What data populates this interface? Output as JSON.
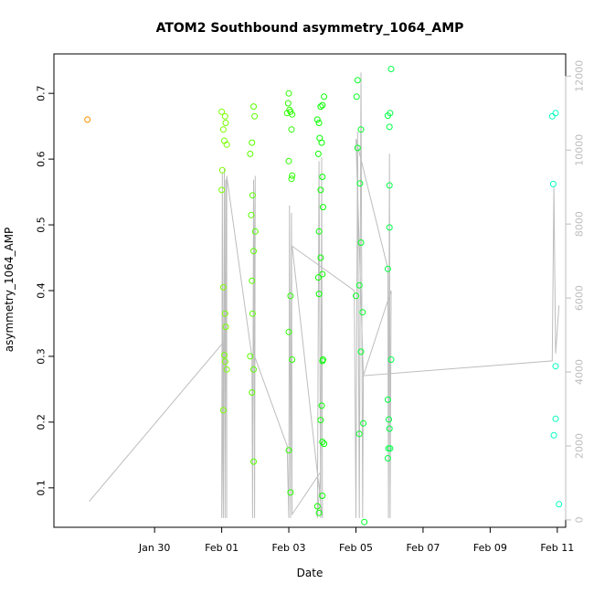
{
  "chart_data": {
    "type": "scatter",
    "title": "ATOM2 Southbound asymmetry_1064_AMP",
    "xlabel": "Date",
    "ylabel": "asymmetry_1064_AMP",
    "x_unit": "days since Jan 29 00:00",
    "x_range": [
      -2.0,
      13.25
    ],
    "ylim": [
      0.04,
      0.76
    ],
    "y_ticks": [
      0.1,
      0.2,
      0.3,
      0.4,
      0.5,
      0.6,
      0.7
    ],
    "y_tick_labels": [
      "0.1",
      "0.2",
      "0.3",
      "0.4",
      "0.5",
      "0.6",
      "0.7"
    ],
    "x_ticks": [
      1,
      3,
      5,
      7,
      9,
      11,
      13
    ],
    "x_tick_labels": [
      "Jan 30",
      "Feb 01",
      "Feb 03",
      "Feb 05",
      "Feb 07",
      "Feb 09",
      "Feb 11"
    ],
    "right_axis": {
      "ylim": [
        -200,
        12600
      ],
      "ticks": [
        0,
        2000,
        4000,
        6000,
        8000,
        10000,
        12000
      ],
      "tick_labels": [
        "0",
        "2000",
        "4000",
        "6000",
        "8000",
        "10000",
        "12000"
      ],
      "color": "#bdbdbd"
    },
    "grid": false,
    "points": [
      {
        "x": -1.0,
        "y": 0.66
      },
      {
        "x": 3.0,
        "y": 0.672
      },
      {
        "x": 3.05,
        "y": 0.645
      },
      {
        "x": 3.1,
        "y": 0.665
      },
      {
        "x": 3.12,
        "y": 0.655
      },
      {
        "x": 3.08,
        "y": 0.628
      },
      {
        "x": 3.15,
        "y": 0.622
      },
      {
        "x": 3.02,
        "y": 0.583
      },
      {
        "x": 3.0,
        "y": 0.553
      },
      {
        "x": 3.05,
        "y": 0.405
      },
      {
        "x": 3.1,
        "y": 0.365
      },
      {
        "x": 3.12,
        "y": 0.345
      },
      {
        "x": 3.08,
        "y": 0.302
      },
      {
        "x": 3.1,
        "y": 0.292
      },
      {
        "x": 3.15,
        "y": 0.28
      },
      {
        "x": 3.05,
        "y": 0.218
      },
      {
        "x": 3.85,
        "y": 0.608
      },
      {
        "x": 3.9,
        "y": 0.625
      },
      {
        "x": 3.95,
        "y": 0.68
      },
      {
        "x": 3.98,
        "y": 0.665
      },
      {
        "x": 3.92,
        "y": 0.545
      },
      {
        "x": 3.88,
        "y": 0.515
      },
      {
        "x": 4.0,
        "y": 0.49
      },
      {
        "x": 3.95,
        "y": 0.46
      },
      {
        "x": 3.9,
        "y": 0.415
      },
      {
        "x": 3.92,
        "y": 0.365
      },
      {
        "x": 3.85,
        "y": 0.3
      },
      {
        "x": 3.95,
        "y": 0.28
      },
      {
        "x": 3.9,
        "y": 0.245
      },
      {
        "x": 3.95,
        "y": 0.14
      },
      {
        "x": 5.0,
        "y": 0.7
      },
      {
        "x": 4.98,
        "y": 0.685
      },
      {
        "x": 5.02,
        "y": 0.675
      },
      {
        "x": 5.05,
        "y": 0.672
      },
      {
        "x": 5.1,
        "y": 0.668
      },
      {
        "x": 4.95,
        "y": 0.67
      },
      {
        "x": 5.08,
        "y": 0.645
      },
      {
        "x": 5.0,
        "y": 0.597
      },
      {
        "x": 5.1,
        "y": 0.575
      },
      {
        "x": 5.08,
        "y": 0.57
      },
      {
        "x": 5.05,
        "y": 0.392
      },
      {
        "x": 5.0,
        "y": 0.337
      },
      {
        "x": 5.1,
        "y": 0.295
      },
      {
        "x": 5.0,
        "y": 0.157
      },
      {
        "x": 5.05,
        "y": 0.093
      },
      {
        "x": 5.85,
        "y": 0.66
      },
      {
        "x": 5.9,
        "y": 0.655
      },
      {
        "x": 5.95,
        "y": 0.68
      },
      {
        "x": 6.0,
        "y": 0.682
      },
      {
        "x": 6.05,
        "y": 0.695
      },
      {
        "x": 5.92,
        "y": 0.632
      },
      {
        "x": 5.98,
        "y": 0.625
      },
      {
        "x": 5.88,
        "y": 0.608
      },
      {
        "x": 6.0,
        "y": 0.573
      },
      {
        "x": 5.95,
        "y": 0.553
      },
      {
        "x": 6.02,
        "y": 0.527
      },
      {
        "x": 5.9,
        "y": 0.49
      },
      {
        "x": 5.95,
        "y": 0.45
      },
      {
        "x": 6.0,
        "y": 0.425
      },
      {
        "x": 5.88,
        "y": 0.42
      },
      {
        "x": 5.9,
        "y": 0.395
      },
      {
        "x": 6.02,
        "y": 0.295
      },
      {
        "x": 6.0,
        "y": 0.293
      },
      {
        "x": 5.98,
        "y": 0.225
      },
      {
        "x": 5.95,
        "y": 0.203
      },
      {
        "x": 6.0,
        "y": 0.17
      },
      {
        "x": 6.05,
        "y": 0.167
      },
      {
        "x": 6.0,
        "y": 0.088
      },
      {
        "x": 5.85,
        "y": 0.072
      },
      {
        "x": 5.9,
        "y": 0.062
      },
      {
        "x": 7.05,
        "y": 0.72
      },
      {
        "x": 7.02,
        "y": 0.695
      },
      {
        "x": 7.15,
        "y": 0.645
      },
      {
        "x": 7.05,
        "y": 0.617
      },
      {
        "x": 7.12,
        "y": 0.563
      },
      {
        "x": 7.15,
        "y": 0.473
      },
      {
        "x": 7.1,
        "y": 0.408
      },
      {
        "x": 7.0,
        "y": 0.392
      },
      {
        "x": 7.2,
        "y": 0.367
      },
      {
        "x": 7.15,
        "y": 0.307
      },
      {
        "x": 7.22,
        "y": 0.198
      },
      {
        "x": 7.1,
        "y": 0.182
      },
      {
        "x": 7.25,
        "y": 0.048
      },
      {
        "x": 8.05,
        "y": 0.737
      },
      {
        "x": 8.02,
        "y": 0.67
      },
      {
        "x": 7.95,
        "y": 0.666
      },
      {
        "x": 8.0,
        "y": 0.649
      },
      {
        "x": 8.0,
        "y": 0.56
      },
      {
        "x": 8.0,
        "y": 0.496
      },
      {
        "x": 7.95,
        "y": 0.433
      },
      {
        "x": 8.05,
        "y": 0.295
      },
      {
        "x": 7.95,
        "y": 0.234
      },
      {
        "x": 7.98,
        "y": 0.204
      },
      {
        "x": 8.0,
        "y": 0.19
      },
      {
        "x": 7.97,
        "y": 0.16
      },
      {
        "x": 8.02,
        "y": 0.16
      },
      {
        "x": 7.95,
        "y": 0.145
      },
      {
        "x": 12.85,
        "y": 0.665
      },
      {
        "x": 12.95,
        "y": 0.67
      },
      {
        "x": 12.88,
        "y": 0.562
      },
      {
        "x": 12.95,
        "y": 0.285
      },
      {
        "x": 12.95,
        "y": 0.205
      },
      {
        "x": 12.9,
        "y": 0.18
      },
      {
        "x": 13.05,
        "y": 0.075
      }
    ],
    "right_series_line": [
      [
        -0.95,
        500
      ],
      [
        3.05,
        4800
      ],
      [
        3.0,
        50
      ],
      [
        3.02,
        9400
      ],
      [
        3.05,
        50
      ],
      [
        3.08,
        9500
      ],
      [
        3.1,
        50
      ],
      [
        3.12,
        9200
      ],
      [
        3.15,
        50
      ],
      [
        3.15,
        9300
      ],
      [
        3.9,
        4400
      ],
      [
        3.92,
        50
      ],
      [
        3.95,
        9200
      ],
      [
        3.98,
        50
      ],
      [
        4.0,
        9300
      ],
      [
        3.95,
        4500
      ],
      [
        4.95,
        2000
      ],
      [
        5.0,
        50
      ],
      [
        5.02,
        8500
      ],
      [
        5.05,
        50
      ],
      [
        5.08,
        8300
      ],
      [
        5.1,
        150
      ],
      [
        5.95,
        1300
      ],
      [
        5.85,
        50
      ],
      [
        5.9,
        9700
      ],
      [
        5.95,
        50
      ],
      [
        5.98,
        9800
      ],
      [
        6.0,
        50
      ],
      [
        5.1,
        7400
      ],
      [
        6.95,
        6200
      ],
      [
        7.0,
        50
      ],
      [
        7.05,
        10500
      ],
      [
        7.1,
        50
      ],
      [
        7.15,
        12100
      ],
      [
        7.2,
        50
      ],
      [
        7.22,
        3900
      ],
      [
        7.0,
        10300
      ],
      [
        7.95,
        6800
      ],
      [
        7.97,
        50
      ],
      [
        8.0,
        9900
      ],
      [
        8.02,
        50
      ],
      [
        8.05,
        6200
      ],
      [
        7.22,
        3900
      ],
      [
        12.85,
        4300
      ],
      [
        12.9,
        9000
      ],
      [
        12.95,
        4500
      ],
      [
        13.05,
        5800
      ]
    ]
  }
}
